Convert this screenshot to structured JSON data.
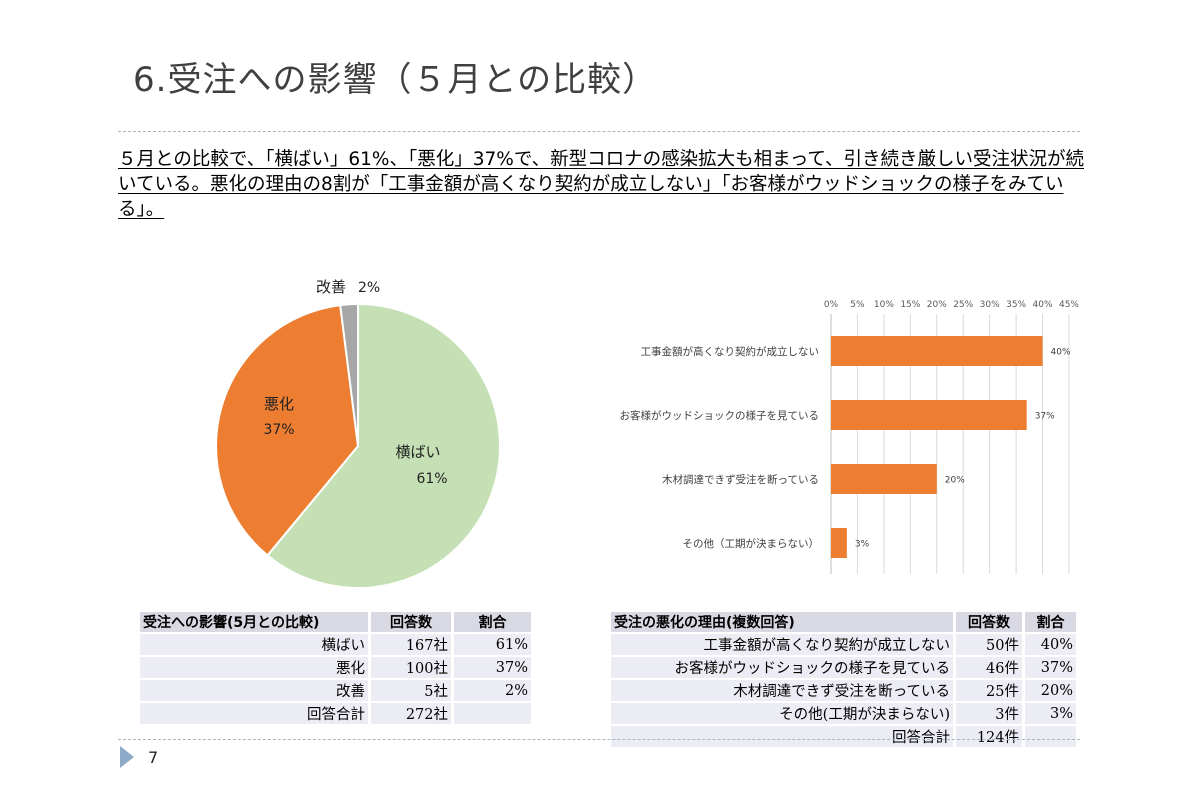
{
  "slide": {
    "title": "6.受注への影響（５月との比較）",
    "summary": "５月との比較で、「横ばい」61%、「悪化」37%で、新型コロナの感染拡大も相まって、引き続き厳しい受注状況が続いている。悪化の理由の8割が「工事金額が高くなり契約が成立しない」「お客様がウッドショックの様子をみている」。",
    "page_number": "7"
  },
  "colors": {
    "yokobai": "#c5e0b4",
    "akka": "#ed7d31",
    "kaizen": "#a6a6a6",
    "bar": "#ed7d31"
  },
  "chart_data": [
    {
      "type": "pie",
      "title": "",
      "slices": [
        {
          "label": "横ばい",
          "value_label": "61%",
          "value": 61,
          "color": "#c5e0b4"
        },
        {
          "label": "悪化",
          "value_label": "37%",
          "value": 37,
          "color": "#ed7d31"
        },
        {
          "label": "改善",
          "value_label": "2%",
          "value": 2,
          "color": "#a6a6a6"
        }
      ]
    },
    {
      "type": "bar",
      "orientation": "horizontal",
      "title": "",
      "categories": [
        "工事金額が高くなり契約が成立しない",
        "お客様がウッドショックの様子を見ている",
        "木材調達できず受注を断っている",
        "その他（工期が決まらない）"
      ],
      "values": [
        40,
        37,
        20,
        3
      ],
      "value_labels": [
        "40%",
        "37%",
        "20%",
        "3%"
      ],
      "xticks": [
        "0%",
        "5%",
        "10%",
        "15%",
        "20%",
        "25%",
        "30%",
        "35%",
        "40%",
        "45%"
      ],
      "xlim": [
        0,
        45
      ],
      "grid": true,
      "axis_position": "top"
    }
  ],
  "table1": {
    "headers": [
      "受注への影響(5月との比較)",
      "回答数",
      "割合"
    ],
    "rows": [
      [
        "横ばい",
        "167社",
        "61%"
      ],
      [
        "悪化",
        "100社",
        "37%"
      ],
      [
        "改善",
        "5社",
        "2%"
      ],
      [
        "回答合計",
        "272社",
        ""
      ]
    ]
  },
  "table2": {
    "headers": [
      "受注の悪化の理由(複数回答)",
      "回答数",
      "割合"
    ],
    "rows": [
      [
        "工事金額が高くなり契約が成立しない",
        "50件",
        "40%"
      ],
      [
        "お客様がウッドショックの様子を見ている",
        "46件",
        "37%"
      ],
      [
        "木材調達できず受注を断っている",
        "25件",
        "20%"
      ],
      [
        "その他(工期が決まらない)",
        "3件",
        "3%"
      ],
      [
        "回答合計",
        "124件",
        ""
      ]
    ]
  }
}
